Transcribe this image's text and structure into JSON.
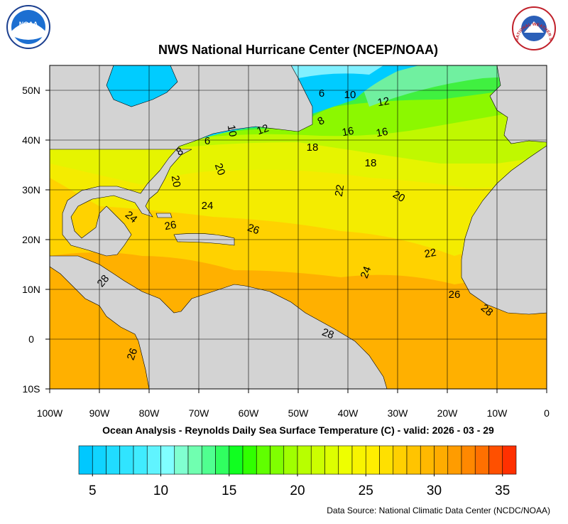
{
  "header": {
    "title": "NWS National Hurricane Center (NCEP/NOAA)"
  },
  "logos": {
    "noaa": "NOAA",
    "nws": "NATIONAL WEATHER SERVICE"
  },
  "map": {
    "lon_range": [
      -100,
      0
    ],
    "lat_range": [
      -10,
      55
    ],
    "lon_ticks": [
      {
        "value": -100,
        "label": "100W"
      },
      {
        "value": -90,
        "label": "90W"
      },
      {
        "value": -80,
        "label": "80W"
      },
      {
        "value": -70,
        "label": "70W"
      },
      {
        "value": -60,
        "label": "60W"
      },
      {
        "value": -50,
        "label": "50W"
      },
      {
        "value": -40,
        "label": "40W"
      },
      {
        "value": -30,
        "label": "30W"
      },
      {
        "value": -20,
        "label": "20W"
      },
      {
        "value": -10,
        "label": "10W"
      },
      0
    ],
    "lat_ticks": [
      {
        "value": 50,
        "label": "50N"
      },
      {
        "value": 40,
        "label": "40N"
      },
      {
        "value": 30,
        "label": "30N"
      },
      {
        "value": 20,
        "label": "20N"
      },
      {
        "value": 10,
        "label": "10N"
      },
      0,
      {
        "value": -10,
        "label": "10S"
      }
    ],
    "contour_labels": [
      6,
      10,
      12,
      6,
      10,
      12,
      8,
      16,
      16,
      18,
      8,
      20,
      18,
      20,
      22,
      20,
      24,
      24,
      26,
      26,
      22,
      28,
      24,
      26,
      28,
      28,
      26
    ]
  },
  "caption": "Ocean Analysis - Reynolds Daily Sea Surface Temperature (C) - valid: 2026 - 03 - 29",
  "colorbar": {
    "range": [
      4,
      36
    ],
    "ticks": [
      5,
      10,
      15,
      20,
      25,
      30,
      35
    ],
    "colors": [
      "#00c8ff",
      "#10d4ff",
      "#20dcff",
      "#30e4ff",
      "#40ecff",
      "#60f4ff",
      "#80ffff",
      "#80ffd0",
      "#70ffb0",
      "#50ff90",
      "#30ff60",
      "#10ff20",
      "#30ff00",
      "#60ff00",
      "#80ff00",
      "#a0ff00",
      "#b8ff00",
      "#ccff00",
      "#ddff00",
      "#eeff00",
      "#f8f400",
      "#ffee00",
      "#ffe000",
      "#ffd000",
      "#ffc400",
      "#ffb800",
      "#ffac00",
      "#ff9c00",
      "#ff8800",
      "#ff7000",
      "#ff5000",
      "#ff3000"
    ]
  },
  "source": "Data Source: National Climatic Data Center (NCDC/NOAA)"
}
